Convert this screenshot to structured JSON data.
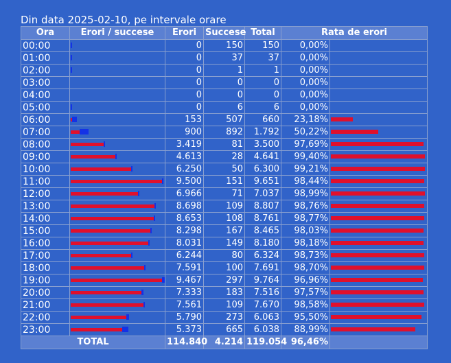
{
  "caption": "Din data 2025-02-10, pe intervale orare",
  "headers": {
    "hour": "Ora",
    "bar": "Erori / succese",
    "errors": "Erori",
    "successes": "Succese",
    "total": "Total",
    "rate": "Rata de erori"
  },
  "total_row": {
    "label": "TOTAL",
    "errors": "114.840",
    "successes": "4.214",
    "total": "119.054",
    "rate": "96,46%"
  },
  "colors": {
    "background": "#3163c9",
    "error_bar": "#e0102c",
    "success_bar": "#1432e6",
    "header": "#5b80d2"
  },
  "chart_data": {
    "type": "table",
    "title": "Din data 2025-02-10, pe intervale orare",
    "columns": [
      "Ora",
      "Erori / succese",
      "Erori",
      "Succese",
      "Total",
      "Rata de erori"
    ],
    "rows": [
      {
        "hour": "00:00",
        "errors": 0,
        "successes": 150,
        "total": 150,
        "errors_label": "0",
        "successes_label": "150",
        "total_label": "150",
        "rate": 0.0,
        "rate_label": "0,00%"
      },
      {
        "hour": "01:00",
        "errors": 0,
        "successes": 37,
        "total": 37,
        "errors_label": "0",
        "successes_label": "37",
        "total_label": "37",
        "rate": 0.0,
        "rate_label": "0,00%"
      },
      {
        "hour": "02:00",
        "errors": 0,
        "successes": 1,
        "total": 1,
        "errors_label": "0",
        "successes_label": "1",
        "total_label": "1",
        "rate": 0.0,
        "rate_label": "0,00%"
      },
      {
        "hour": "03:00",
        "errors": 0,
        "successes": 0,
        "total": 0,
        "errors_label": "0",
        "successes_label": "0",
        "total_label": "0",
        "rate": 0.0,
        "rate_label": "0,00%"
      },
      {
        "hour": "04:00",
        "errors": 0,
        "successes": 0,
        "total": 0,
        "errors_label": "0",
        "successes_label": "0",
        "total_label": "0",
        "rate": 0.0,
        "rate_label": "0,00%"
      },
      {
        "hour": "05:00",
        "errors": 0,
        "successes": 6,
        "total": 6,
        "errors_label": "0",
        "successes_label": "6",
        "total_label": "6",
        "rate": 0.0,
        "rate_label": "0,00%"
      },
      {
        "hour": "06:00",
        "errors": 153,
        "successes": 507,
        "total": 660,
        "errors_label": "153",
        "successes_label": "507",
        "total_label": "660",
        "rate": 23.18,
        "rate_label": "23,18%"
      },
      {
        "hour": "07:00",
        "errors": 900,
        "successes": 892,
        "total": 1792,
        "errors_label": "900",
        "successes_label": "892",
        "total_label": "1.792",
        "rate": 50.22,
        "rate_label": "50,22%"
      },
      {
        "hour": "08:00",
        "errors": 3419,
        "successes": 81,
        "total": 3500,
        "errors_label": "3.419",
        "successes_label": "81",
        "total_label": "3.500",
        "rate": 97.69,
        "rate_label": "97,69%"
      },
      {
        "hour": "09:00",
        "errors": 4613,
        "successes": 28,
        "total": 4641,
        "errors_label": "4.613",
        "successes_label": "28",
        "total_label": "4.641",
        "rate": 99.4,
        "rate_label": "99,40%"
      },
      {
        "hour": "10:00",
        "errors": 6250,
        "successes": 50,
        "total": 6300,
        "errors_label": "6.250",
        "successes_label": "50",
        "total_label": "6.300",
        "rate": 99.21,
        "rate_label": "99,21%"
      },
      {
        "hour": "11:00",
        "errors": 9500,
        "successes": 151,
        "total": 9651,
        "errors_label": "9.500",
        "successes_label": "151",
        "total_label": "9.651",
        "rate": 98.44,
        "rate_label": "98,44%"
      },
      {
        "hour": "12:00",
        "errors": 6966,
        "successes": 71,
        "total": 7037,
        "errors_label": "6.966",
        "successes_label": "71",
        "total_label": "7.037",
        "rate": 98.99,
        "rate_label": "98,99%"
      },
      {
        "hour": "13:00",
        "errors": 8698,
        "successes": 109,
        "total": 8807,
        "errors_label": "8.698",
        "successes_label": "109",
        "total_label": "8.807",
        "rate": 98.76,
        "rate_label": "98,76%"
      },
      {
        "hour": "14:00",
        "errors": 8653,
        "successes": 108,
        "total": 8761,
        "errors_label": "8.653",
        "successes_label": "108",
        "total_label": "8.761",
        "rate": 98.77,
        "rate_label": "98,77%"
      },
      {
        "hour": "15:00",
        "errors": 8298,
        "successes": 167,
        "total": 8465,
        "errors_label": "8.298",
        "successes_label": "167",
        "total_label": "8.465",
        "rate": 98.03,
        "rate_label": "98,03%"
      },
      {
        "hour": "16:00",
        "errors": 8031,
        "successes": 149,
        "total": 8180,
        "errors_label": "8.031",
        "successes_label": "149",
        "total_label": "8.180",
        "rate": 98.18,
        "rate_label": "98,18%"
      },
      {
        "hour": "17:00",
        "errors": 6244,
        "successes": 80,
        "total": 6324,
        "errors_label": "6.244",
        "successes_label": "80",
        "total_label": "6.324",
        "rate": 98.73,
        "rate_label": "98,73%"
      },
      {
        "hour": "18:00",
        "errors": 7591,
        "successes": 100,
        "total": 7691,
        "errors_label": "7.591",
        "successes_label": "100",
        "total_label": "7.691",
        "rate": 98.7,
        "rate_label": "98,70%"
      },
      {
        "hour": "19:00",
        "errors": 9467,
        "successes": 297,
        "total": 9764,
        "errors_label": "9.467",
        "successes_label": "297",
        "total_label": "9.764",
        "rate": 96.96,
        "rate_label": "96,96%"
      },
      {
        "hour": "20:00",
        "errors": 7333,
        "successes": 183,
        "total": 7516,
        "errors_label": "7.333",
        "successes_label": "183",
        "total_label": "7.516",
        "rate": 97.57,
        "rate_label": "97,57%"
      },
      {
        "hour": "21:00",
        "errors": 7561,
        "successes": 109,
        "total": 7670,
        "errors_label": "7.561",
        "successes_label": "109",
        "total_label": "7.670",
        "rate": 98.58,
        "rate_label": "98,58%"
      },
      {
        "hour": "22:00",
        "errors": 5790,
        "successes": 273,
        "total": 6063,
        "errors_label": "5.790",
        "successes_label": "273",
        "total_label": "6.063",
        "rate": 95.5,
        "rate_label": "95,50%"
      },
      {
        "hour": "23:00",
        "errors": 5373,
        "successes": 665,
        "total": 6038,
        "errors_label": "5.373",
        "successes_label": "665",
        "total_label": "6.038",
        "rate": 88.99,
        "rate_label": "88,99%"
      }
    ],
    "bar_max_total": 9764,
    "rate_max": 100
  }
}
